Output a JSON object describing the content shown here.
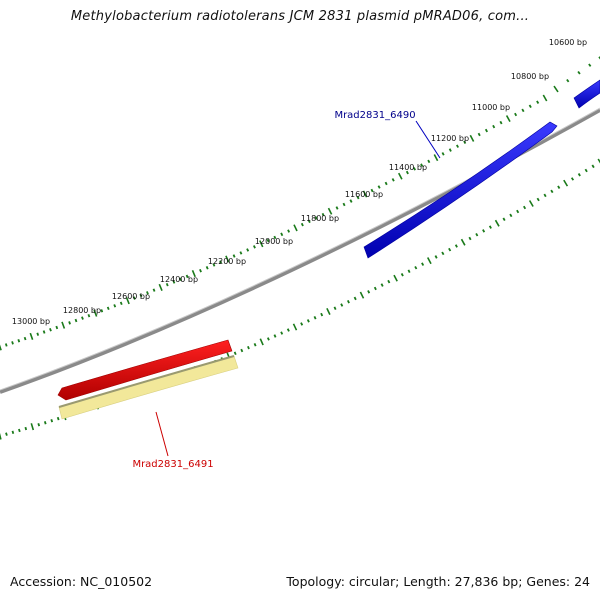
{
  "title": "Methylobacterium radiotolerans JCM 2831 plasmid pMRAD06, com...",
  "footer": {
    "accession": "Accession: NC_010502",
    "summary": "Topology: circular; Length: 27,836 bp; Genes: 24"
  },
  "scale_labels": [
    {
      "bp": 10600,
      "text": "10600 bp"
    },
    {
      "bp": 10800,
      "text": "10800 bp"
    },
    {
      "bp": 11000,
      "text": "11000 bp"
    },
    {
      "bp": 11200,
      "text": "11200 bp"
    },
    {
      "bp": 11400,
      "text": "11400 bp"
    },
    {
      "bp": 11600,
      "text": "11600 bp"
    },
    {
      "bp": 11800,
      "text": "11800 bp"
    },
    {
      "bp": 12000,
      "text": "12000 bp"
    },
    {
      "bp": 12200,
      "text": "12200 bp"
    },
    {
      "bp": 12400,
      "text": "12400 bp"
    },
    {
      "bp": 12600,
      "text": "12600 bp"
    },
    {
      "bp": 12800,
      "text": "12800 bp"
    },
    {
      "bp": 13000,
      "text": "13000 bp"
    }
  ],
  "genes": [
    {
      "id": "Mrad2831_6490",
      "label": "Mrad2831_6490",
      "strand": "forward",
      "color": "#0000e0"
    },
    {
      "id": "Mrad2831_6491",
      "label": "Mrad2831_6491",
      "strand": "reverse",
      "color": "#e00000",
      "cds_color": "#f2e89a"
    }
  ],
  "colors": {
    "backbone": "#808080",
    "ticks": "#1a7a1a",
    "forward_gene": "#0000e0",
    "reverse_gene": "#e00000",
    "label_forward": "#00008b",
    "label_reverse": "#cc0000"
  }
}
